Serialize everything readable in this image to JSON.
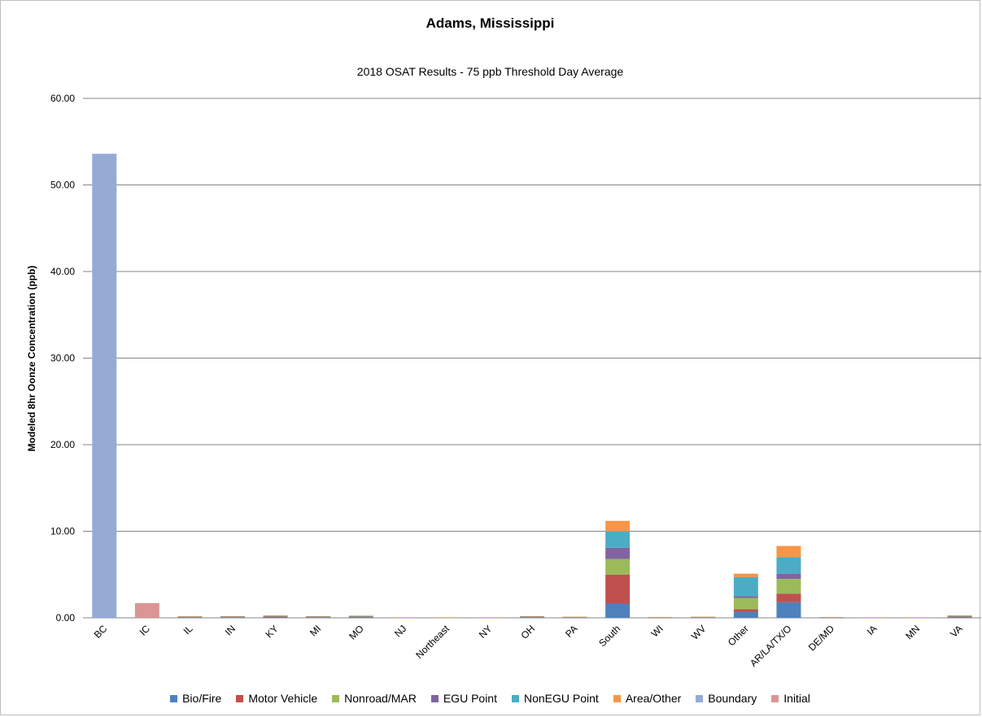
{
  "chart_data": {
    "type": "bar",
    "stacked": true,
    "title": "Adams, Mississippi",
    "subtitle": "2018 OSAT Results - 75 ppb Threshold Day Average",
    "xlabel": "",
    "ylabel": "Modeled 8hr Oonze Concentration (ppb)",
    "ylim": [
      0,
      60
    ],
    "yticks": [
      "0.00",
      "10.00",
      "20.00",
      "30.00",
      "40.00",
      "50.00",
      "60.00"
    ],
    "grid": true,
    "legend_position": "bottom",
    "categories": [
      "BC",
      "IC",
      "IL",
      "IN",
      "KY",
      "MI",
      "MO",
      "NJ",
      "Northeast",
      "NY",
      "OH",
      "PA",
      "South",
      "WI",
      "WV",
      "Other",
      "AR/LA/TX/O",
      "DE/MD",
      "IA",
      "MN",
      "VA"
    ],
    "series": [
      {
        "name": "Bio/Fire",
        "color": "#4f81bd",
        "values": [
          0,
          0,
          0.03,
          0.03,
          0.04,
          0.03,
          0.04,
          0.01,
          0.01,
          0.01,
          0.03,
          0.02,
          1.6,
          0.02,
          0.02,
          0.7,
          1.8,
          0.02,
          0.01,
          0.01,
          0.04
        ]
      },
      {
        "name": "Motor Vehicle",
        "color": "#c0504d",
        "values": [
          0,
          0,
          0.05,
          0.05,
          0.07,
          0.05,
          0.06,
          0.01,
          0.01,
          0.01,
          0.05,
          0.03,
          3.4,
          0.02,
          0.03,
          0.3,
          1.0,
          0.02,
          0.01,
          0.01,
          0.07
        ]
      },
      {
        "name": "Nonroad/MAR",
        "color": "#9bbb59",
        "values": [
          0,
          0,
          0.03,
          0.03,
          0.04,
          0.03,
          0.04,
          0.01,
          0.01,
          0.01,
          0.03,
          0.02,
          1.8,
          0.01,
          0.02,
          1.3,
          1.7,
          0.01,
          0.01,
          0.01,
          0.04
        ]
      },
      {
        "name": "EGU Point",
        "color": "#8064a2",
        "values": [
          0,
          0,
          0.03,
          0.03,
          0.05,
          0.03,
          0.04,
          0.01,
          0.01,
          0.01,
          0.03,
          0.02,
          1.3,
          0.01,
          0.02,
          0.2,
          0.6,
          0.01,
          0.01,
          0.01,
          0.05
        ]
      },
      {
        "name": "NonEGU Point",
        "color": "#4bacc6",
        "values": [
          0,
          0,
          0.02,
          0.03,
          0.04,
          0.03,
          0.04,
          0.01,
          0.01,
          0.01,
          0.03,
          0.02,
          1.9,
          0.01,
          0.02,
          2.2,
          1.9,
          0.01,
          0.01,
          0.01,
          0.04
        ]
      },
      {
        "name": "Area/Other",
        "color": "#f79646",
        "values": [
          0,
          0,
          0.02,
          0.03,
          0.04,
          0.03,
          0.04,
          0.01,
          0.01,
          0.01,
          0.03,
          0.02,
          1.2,
          0.01,
          0.02,
          0.4,
          1.3,
          0.01,
          0.01,
          0.01,
          0.04
        ]
      },
      {
        "name": "Boundary",
        "color": "#95abd4",
        "values": [
          53.6,
          0,
          0,
          0,
          0,
          0,
          0,
          0,
          0,
          0,
          0,
          0,
          0,
          0,
          0,
          0,
          0,
          0,
          0,
          0,
          0
        ]
      },
      {
        "name": "Initial",
        "color": "#d99694",
        "values": [
          0,
          1.7,
          0,
          0,
          0,
          0,
          0,
          0,
          0,
          0,
          0,
          0,
          0,
          0,
          0,
          0,
          0,
          0,
          0,
          0,
          0
        ]
      }
    ]
  }
}
